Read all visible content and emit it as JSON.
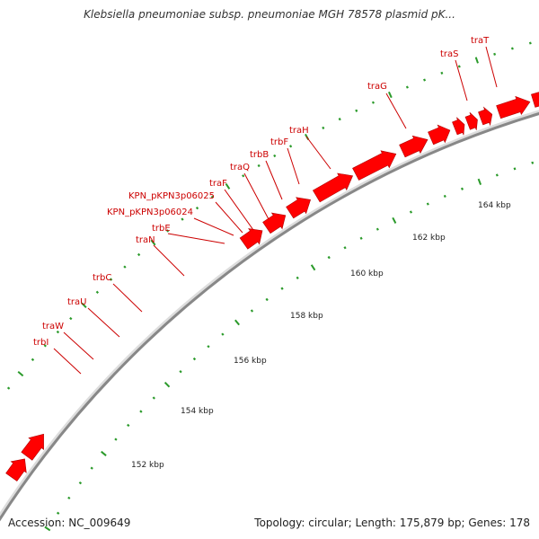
{
  "title": "Klebsiella pneumoniae subsp. pneumoniae MGH 78578 plasmid pK...",
  "footer": {
    "accession": "Accession: NC_009649",
    "summary": "Topology: circular; Length: 175,879 bp; Genes: 178"
  },
  "colors": {
    "gene": "#ff0000",
    "gene_stroke": "#b00000",
    "label": "#cc0000",
    "tick": "#2a9a2a",
    "backbone": "#888888"
  },
  "kbp_labels": [
    "152 kbp",
    "154 kbp",
    "156 kbp",
    "158 kbp",
    "160 kbp",
    "162 kbp",
    "164 kbp"
  ],
  "gene_labels": [
    "traT",
    "traS",
    "traG",
    "traH",
    "trbF",
    "trbB",
    "traQ",
    "traF",
    "KPN_pKPN3p06025",
    "KPN_pKPN3p06024",
    "trbE",
    "traN",
    "trbC",
    "traU",
    "traW",
    "trbI"
  ]
}
